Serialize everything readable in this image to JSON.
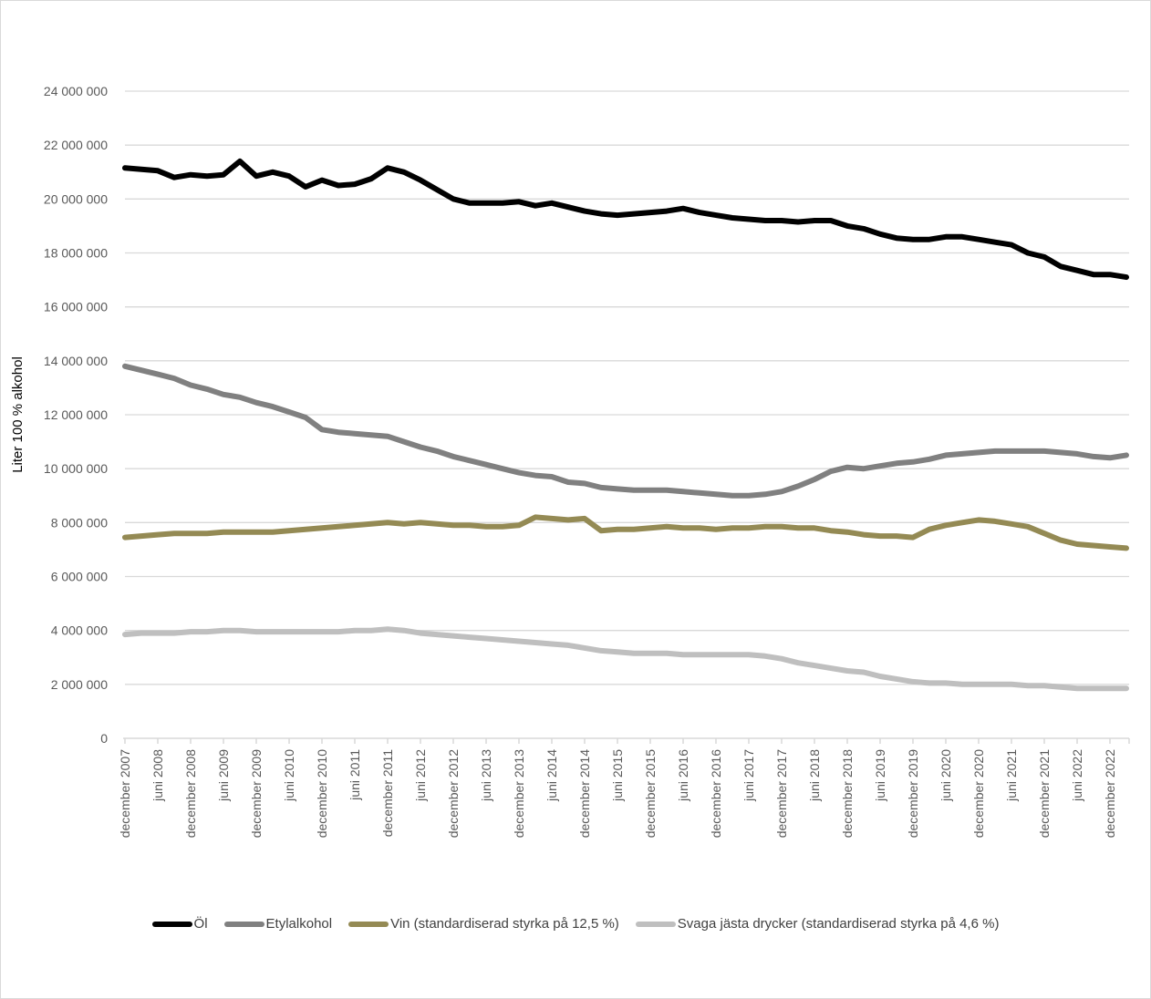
{
  "chart_data": {
    "type": "line",
    "title": "",
    "xlabel": "",
    "ylabel": "Liter 100 % alkohol",
    "ylim": [
      0,
      24000000
    ],
    "yticks": [
      0,
      2000000,
      4000000,
      6000000,
      8000000,
      10000000,
      12000000,
      14000000,
      16000000,
      18000000,
      20000000,
      22000000,
      24000000
    ],
    "ytick_labels": [
      "0",
      "2 000 000",
      "4 000 000",
      "6 000 000",
      "8 000 000",
      "10 000 000",
      "12 000 000",
      "14 000 000",
      "16 000 000",
      "18 000 000",
      "20 000 000",
      "22 000 000",
      "24 000 000"
    ],
    "xtick_labels": [
      "december 2007",
      "juni 2008",
      "december 2008",
      "juni 2009",
      "december 2009",
      "juni 2010",
      "december 2010",
      "juni 2011",
      "december 2011",
      "juni 2012",
      "december 2012",
      "juni 2013",
      "december 2013",
      "juni 2014",
      "december 2014",
      "juni 2015",
      "december 2015",
      "juni 2016",
      "december 2016",
      "juni 2017",
      "december 2017",
      "juni 2018",
      "december 2018",
      "juni 2019",
      "december 2019",
      "juni 2020",
      "december 2020",
      "juni 2021",
      "december 2021",
      "juni 2022",
      "december 2022"
    ],
    "grid": true,
    "legend_position": "bottom",
    "x": [
      "2007-12",
      "2008-03",
      "2008-06",
      "2008-09",
      "2008-12",
      "2009-03",
      "2009-06",
      "2009-09",
      "2009-12",
      "2010-03",
      "2010-06",
      "2010-09",
      "2010-12",
      "2011-03",
      "2011-06",
      "2011-09",
      "2011-12",
      "2012-03",
      "2012-06",
      "2012-09",
      "2012-12",
      "2013-03",
      "2013-06",
      "2013-09",
      "2013-12",
      "2014-03",
      "2014-06",
      "2014-09",
      "2014-12",
      "2015-03",
      "2015-06",
      "2015-09",
      "2015-12",
      "2016-03",
      "2016-06",
      "2016-09",
      "2016-12",
      "2017-03",
      "2017-06",
      "2017-09",
      "2017-12",
      "2018-03",
      "2018-06",
      "2018-09",
      "2018-12",
      "2019-03",
      "2019-06",
      "2019-09",
      "2019-12",
      "2020-03",
      "2020-06",
      "2020-09",
      "2020-12",
      "2021-03",
      "2021-06",
      "2021-09",
      "2021-12",
      "2022-03",
      "2022-06",
      "2022-09",
      "2022-12",
      "2023-03"
    ],
    "series": [
      {
        "name": "Öl",
        "color": "#000000",
        "values": [
          21150000,
          21100000,
          21050000,
          20800000,
          20900000,
          20850000,
          20900000,
          21400000,
          20850000,
          21000000,
          20850000,
          20450000,
          20700000,
          20500000,
          20550000,
          20750000,
          21150000,
          21000000,
          20700000,
          20350000,
          20000000,
          19850000,
          19850000,
          19850000,
          19900000,
          19750000,
          19850000,
          19700000,
          19550000,
          19450000,
          19400000,
          19450000,
          19500000,
          19550000,
          19650000,
          19500000,
          19400000,
          19300000,
          19250000,
          19200000,
          19200000,
          19150000,
          19200000,
          19200000,
          19000000,
          18900000,
          18700000,
          18550000,
          18500000,
          18500000,
          18600000,
          18600000,
          18500000,
          18400000,
          18300000,
          18000000,
          17850000,
          17500000,
          17350000,
          17200000,
          17200000,
          17100000
        ]
      },
      {
        "name": "Etylalkohol",
        "color": "#808080",
        "values": [
          13800000,
          13650000,
          13500000,
          13350000,
          13100000,
          12950000,
          12750000,
          12650000,
          12450000,
          12300000,
          12100000,
          11900000,
          11450000,
          11350000,
          11300000,
          11250000,
          11200000,
          11000000,
          10800000,
          10650000,
          10450000,
          10300000,
          10150000,
          10000000,
          9850000,
          9750000,
          9700000,
          9500000,
          9450000,
          9300000,
          9250000,
          9200000,
          9200000,
          9200000,
          9150000,
          9100000,
          9050000,
          9000000,
          9000000,
          9050000,
          9150000,
          9350000,
          9600000,
          9900000,
          10050000,
          10000000,
          10100000,
          10200000,
          10250000,
          10350000,
          10500000,
          10550000,
          10600000,
          10650000,
          10650000,
          10650000,
          10650000,
          10600000,
          10550000,
          10450000,
          10400000,
          10500000
        ]
      },
      {
        "name": "Vin (standardiserad styrka på 12,5 %)",
        "color": "#948a54",
        "values": [
          7450000,
          7500000,
          7550000,
          7600000,
          7600000,
          7600000,
          7650000,
          7650000,
          7650000,
          7650000,
          7700000,
          7750000,
          7800000,
          7850000,
          7900000,
          7950000,
          8000000,
          7950000,
          8000000,
          7950000,
          7900000,
          7900000,
          7850000,
          7850000,
          7900000,
          8200000,
          8150000,
          8100000,
          8150000,
          7700000,
          7750000,
          7750000,
          7800000,
          7850000,
          7800000,
          7800000,
          7750000,
          7800000,
          7800000,
          7850000,
          7850000,
          7800000,
          7800000,
          7700000,
          7650000,
          7550000,
          7500000,
          7500000,
          7450000,
          7750000,
          7900000,
          8000000,
          8100000,
          8050000,
          7950000,
          7850000,
          7600000,
          7350000,
          7200000,
          7150000,
          7100000,
          7050000
        ]
      },
      {
        "name": "Svaga jästa drycker (standardiserad styrka på 4,6 %)",
        "color": "#bfbfbf",
        "values": [
          3850000,
          3900000,
          3900000,
          3900000,
          3950000,
          3950000,
          4000000,
          4000000,
          3950000,
          3950000,
          3950000,
          3950000,
          3950000,
          3950000,
          4000000,
          4000000,
          4050000,
          4000000,
          3900000,
          3850000,
          3800000,
          3750000,
          3700000,
          3650000,
          3600000,
          3550000,
          3500000,
          3450000,
          3350000,
          3250000,
          3200000,
          3150000,
          3150000,
          3150000,
          3100000,
          3100000,
          3100000,
          3100000,
          3100000,
          3050000,
          2950000,
          2800000,
          2700000,
          2600000,
          2500000,
          2450000,
          2300000,
          2200000,
          2100000,
          2050000,
          2050000,
          2000000,
          2000000,
          2000000,
          2000000,
          1950000,
          1950000,
          1900000,
          1850000,
          1850000,
          1850000,
          1850000
        ]
      }
    ]
  }
}
